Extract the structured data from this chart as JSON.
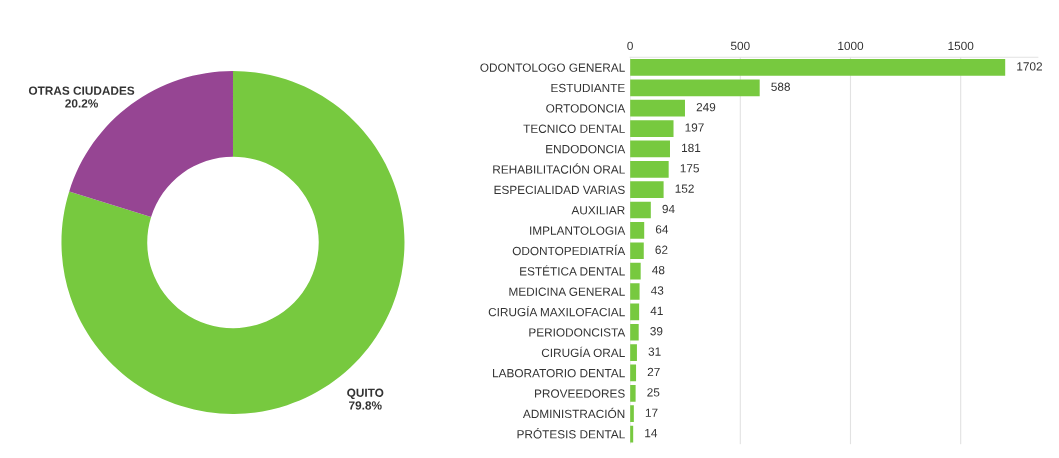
{
  "chart_data": [
    {
      "type": "donut",
      "categories": [
        "QUITO",
        "OTRAS CIUDADES"
      ],
      "values": [
        79.8,
        20.2
      ],
      "colors": [
        "#77c93f",
        "#964593"
      ],
      "value_labels": [
        "79.8%",
        "20.2%"
      ]
    },
    {
      "type": "bar",
      "orientation": "horizontal",
      "categories": [
        "ODONTOLOGO GENERAL",
        "ESTUDIANTE",
        "ORTODONCIA",
        "TECNICO DENTAL",
        "ENDODONCIA",
        "REHABILITACIÓN ORAL",
        "ESPECIALIDAD VARIAS",
        "AUXILIAR",
        "IMPLANTOLOGIA",
        "ODONTOPEDIATRÍA",
        "ESTÉTICA DENTAL",
        "MEDICINA GENERAL",
        "CIRUGÍA MAXILOFACIAL",
        "PERIODONCISTA",
        "CIRUGÍA ORAL",
        "LABORATORIO DENTAL",
        "PROVEEDORES",
        "ADMINISTRACIÓN",
        "PRÓTESIS DENTAL"
      ],
      "values": [
        1702,
        588,
        249,
        197,
        181,
        175,
        152,
        94,
        64,
        62,
        48,
        43,
        41,
        39,
        31,
        27,
        25,
        17,
        14
      ],
      "color": "#77c93f",
      "xlim": [
        0,
        1850
      ],
      "xticks": [
        0,
        500,
        1000,
        1500
      ],
      "grid": "x",
      "data_labels": true
    }
  ]
}
